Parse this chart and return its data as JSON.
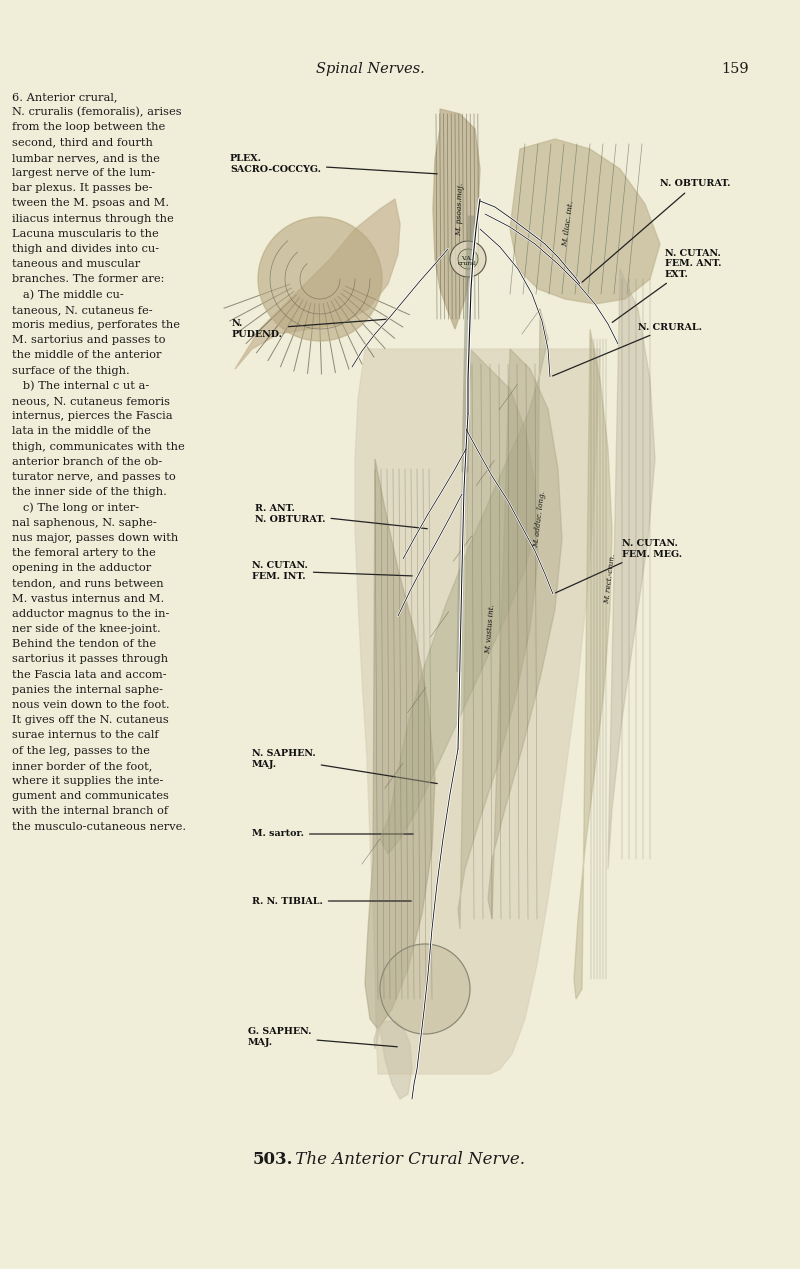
{
  "bg_color": "#f0edd8",
  "page_title": "Spinal Nerves.",
  "page_number": "159",
  "figure_caption_bold": "503.",
  "figure_caption_rest": " The Anterior Crural Nerve.",
  "left_text": [
    {
      "text": "6. Anterior crural,",
      "style": "normal"
    },
    {
      "text": "N. cruralis (femoralis), arises",
      "style": "mixed"
    },
    {
      "text": "from the loop between the",
      "style": "normal"
    },
    {
      "text": "second, third and fourth",
      "style": "normal"
    },
    {
      "text": "lumbar nerves, and is the",
      "style": "normal"
    },
    {
      "text": "largest nerve of the lum-",
      "style": "normal"
    },
    {
      "text": "bar plexus. It passes be-",
      "style": "normal"
    },
    {
      "text": "tween the M. psoas and M.",
      "style": "normal"
    },
    {
      "text": "iliacus internus through the",
      "style": "italic"
    },
    {
      "text": "Lacuna muscularis to the",
      "style": "italic"
    },
    {
      "text": "thigh and divides into cu-",
      "style": "normal"
    },
    {
      "text": "taneous and muscular",
      "style": "normal"
    },
    {
      "text": "branches. The former are:",
      "style": "normal"
    },
    {
      "text": "   a) The middle cu-",
      "style": "normal"
    },
    {
      "text": "taneous, N. cutaneus fe-",
      "style": "normal"
    },
    {
      "text": "moris medius, perforates the",
      "style": "normal"
    },
    {
      "text": "M. sartorius and passes to",
      "style": "normal"
    },
    {
      "text": "the middle of the anterior",
      "style": "normal"
    },
    {
      "text": "surface of the thigh.",
      "style": "normal"
    },
    {
      "text": "   b) The internal c ut a-",
      "style": "normal"
    },
    {
      "text": "neous, N. cutaneus femoris",
      "style": "normal"
    },
    {
      "text": "internus, pierces the Fascia",
      "style": "normal"
    },
    {
      "text": "lata in the middle of the",
      "style": "normal"
    },
    {
      "text": "thigh, communicates with the",
      "style": "normal"
    },
    {
      "text": "anterior branch of the ob-",
      "style": "normal"
    },
    {
      "text": "turator nerve, and passes to",
      "style": "normal"
    },
    {
      "text": "the inner side of the thigh.",
      "style": "normal"
    },
    {
      "text": "   c) The long or inter-",
      "style": "normal"
    },
    {
      "text": "nal saphenous, N. saphe-",
      "style": "normal"
    },
    {
      "text": "nus major, passes down with",
      "style": "normal"
    },
    {
      "text": "the femoral artery to the",
      "style": "normal"
    },
    {
      "text": "opening in the adductor",
      "style": "normal"
    },
    {
      "text": "tendon, and runs between",
      "style": "normal"
    },
    {
      "text": "M. vastus internus and M.",
      "style": "normal"
    },
    {
      "text": "adductor magnus to the in-",
      "style": "normal"
    },
    {
      "text": "ner side of the knee-joint.",
      "style": "normal"
    },
    {
      "text": "Behind the tendon of the",
      "style": "normal"
    },
    {
      "text": "sartorius it passes through",
      "style": "normal"
    },
    {
      "text": "the Fascia lata and accom-",
      "style": "normal"
    },
    {
      "text": "panies the internal saphe-",
      "style": "normal"
    },
    {
      "text": "nous vein down to the foot.",
      "style": "normal"
    },
    {
      "text": "It gives off the N. cutaneus",
      "style": "normal"
    },
    {
      "text": "surae internus to the calf",
      "style": "normal"
    },
    {
      "text": "of the leg, passes to the",
      "style": "normal"
    },
    {
      "text": "inner border of the foot,",
      "style": "normal"
    },
    {
      "text": "where it supplies the inte-",
      "style": "normal"
    },
    {
      "text": "gument and communicates",
      "style": "normal"
    },
    {
      "text": "with the internal branch of",
      "style": "normal"
    },
    {
      "text": "the musculo-cutaneous nerve.",
      "style": "normal"
    }
  ],
  "text_color": "#1a1a1a",
  "dark_color": "#111111",
  "header_fontsize": 10.5,
  "body_fontsize": 8.2,
  "label_fontsize": 6.8,
  "caption_fontsize": 12
}
